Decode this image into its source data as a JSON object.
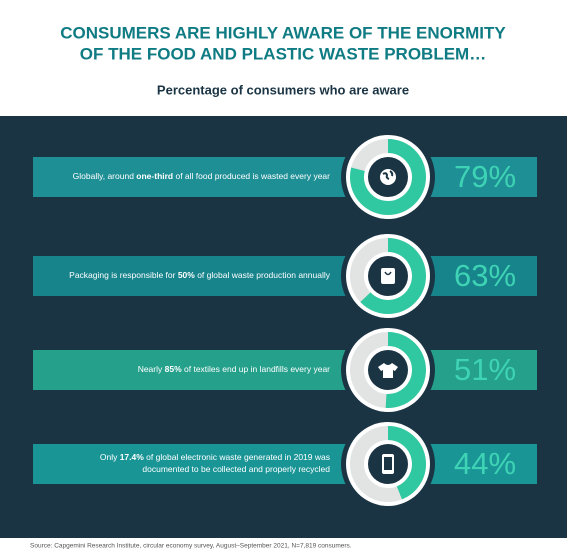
{
  "chart_data": {
    "type": "donut",
    "title": [
      "CONSUMERS ARE HIGHLY AWARE OF THE ENORMITY",
      "OF THE FOOD AND PLASTIC WASTE PROBLEM…"
    ],
    "subtitle": "Percentage of consumers who are aware",
    "statements": [
      [
        [
          {
            "text": "Globally, around ",
            "bold": false
          },
          {
            "text": "one-third",
            "bold": true
          },
          {
            "text": " of all food produced is wasted every year",
            "bold": false
          }
        ]
      ],
      [
        [
          {
            "text": "Packaging is responsible for ",
            "bold": false
          },
          {
            "text": "50%",
            "bold": true
          },
          {
            "text": " of global waste production annually",
            "bold": false
          }
        ]
      ],
      [
        [
          {
            "text": "Nearly ",
            "bold": false
          },
          {
            "text": "85%",
            "bold": true
          },
          {
            "text": " of textiles end up in landfills every year",
            "bold": false
          }
        ]
      ],
      [
        [
          {
            "text": "Only ",
            "bold": false
          },
          {
            "text": "17.4%",
            "bold": true
          },
          {
            "text": " of global electronic waste generated in 2019 was",
            "bold": false
          }
        ],
        [
          {
            "text": "documented to be collected and properly recycled",
            "bold": false
          }
        ]
      ]
    ],
    "values": [
      79,
      63,
      51,
      44
    ],
    "value_labels": [
      "79%",
      "63%",
      "51%",
      "44%"
    ],
    "ylim": [
      0,
      100
    ],
    "color": "#2fc8a0",
    "track_color": "#e2e4e4",
    "bar_colors": [
      "#1e8f95",
      "#17838b",
      "#24a08b",
      "#1a9596"
    ],
    "source": "Source: Capgemini Research Institute, circular economy survey, August–September 2021, N=7,819 consumers."
  }
}
